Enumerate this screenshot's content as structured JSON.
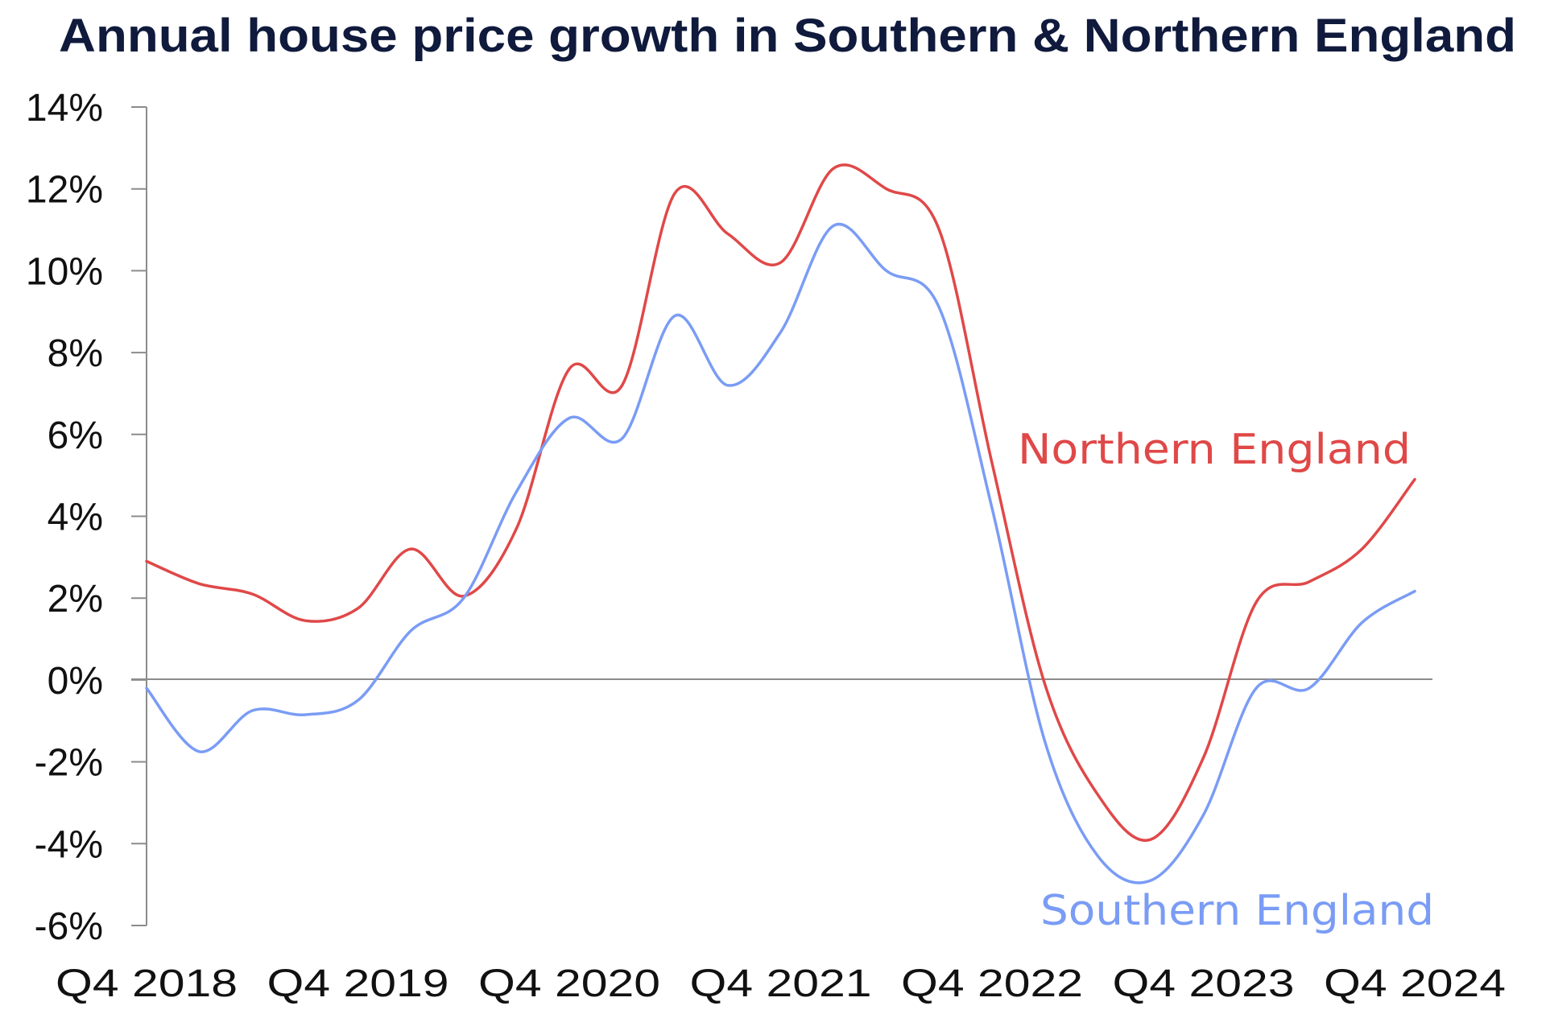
{
  "chart_data": {
    "type": "line",
    "title": "Annual house price growth in Southern & Northern England",
    "xlabel": "",
    "ylabel": "",
    "x": [
      "Q4 2018",
      "Q1 2019",
      "Q2 2019",
      "Q3 2019",
      "Q4 2019",
      "Q1 2020",
      "Q2 2020",
      "Q3 2020",
      "Q4 2020",
      "Q1 2021",
      "Q2 2021",
      "Q3 2021",
      "Q4 2021",
      "Q1 2022",
      "Q2 2022",
      "Q3 2022",
      "Q4 2022",
      "Q1 2023",
      "Q2 2023",
      "Q3 2023",
      "Q4 2023",
      "Q1 2024",
      "Q2 2024",
      "Q3 2024",
      "Q4 2024"
    ],
    "x_tick_labels": [
      "Q4 2018",
      "Q4 2019",
      "Q4 2020",
      "Q4 2021",
      "Q4 2022",
      "Q4 2023",
      "Q4 2024"
    ],
    "x_tick_index": [
      0,
      4,
      8,
      12,
      16,
      20,
      24
    ],
    "y_tick_labels": [
      "14%",
      "12%",
      "10%",
      "8%",
      "6%",
      "4%",
      "2%",
      "0%",
      "-2%",
      "-4%",
      "-6%"
    ],
    "y_tick_values": [
      14,
      12,
      10,
      8,
      6,
      4,
      2,
      0,
      -2,
      -4,
      -6
    ],
    "ylim": [
      -6,
      14
    ],
    "y_unit": "%",
    "grid": false,
    "zero_line": true,
    "legend": "inline labels near line ends",
    "series": [
      {
        "name": "Northern England",
        "color": "#e04848",
        "values": [
          2.9,
          2.35,
          2.1,
          1.45,
          1.75,
          3.2,
          2.05,
          3.7,
          7.6,
          7.2,
          11.9,
          10.9,
          10.2,
          12.5,
          12.0,
          11.0,
          5.3,
          -0.1,
          -2.8,
          -3.9,
          -1.9,
          1.9,
          2.4,
          3.2,
          4.9
        ]
      },
      {
        "name": "Southern England",
        "color": "#7a9cf5",
        "values": [
          -0.2,
          -1.75,
          -0.75,
          -0.85,
          -0.5,
          1.2,
          2.0,
          4.6,
          6.4,
          5.9,
          8.9,
          7.2,
          8.5,
          11.1,
          10.0,
          9.1,
          4.2,
          -1.5,
          -4.3,
          -4.9,
          -3.3,
          -0.2,
          -0.2,
          1.4,
          2.17
        ]
      }
    ]
  }
}
